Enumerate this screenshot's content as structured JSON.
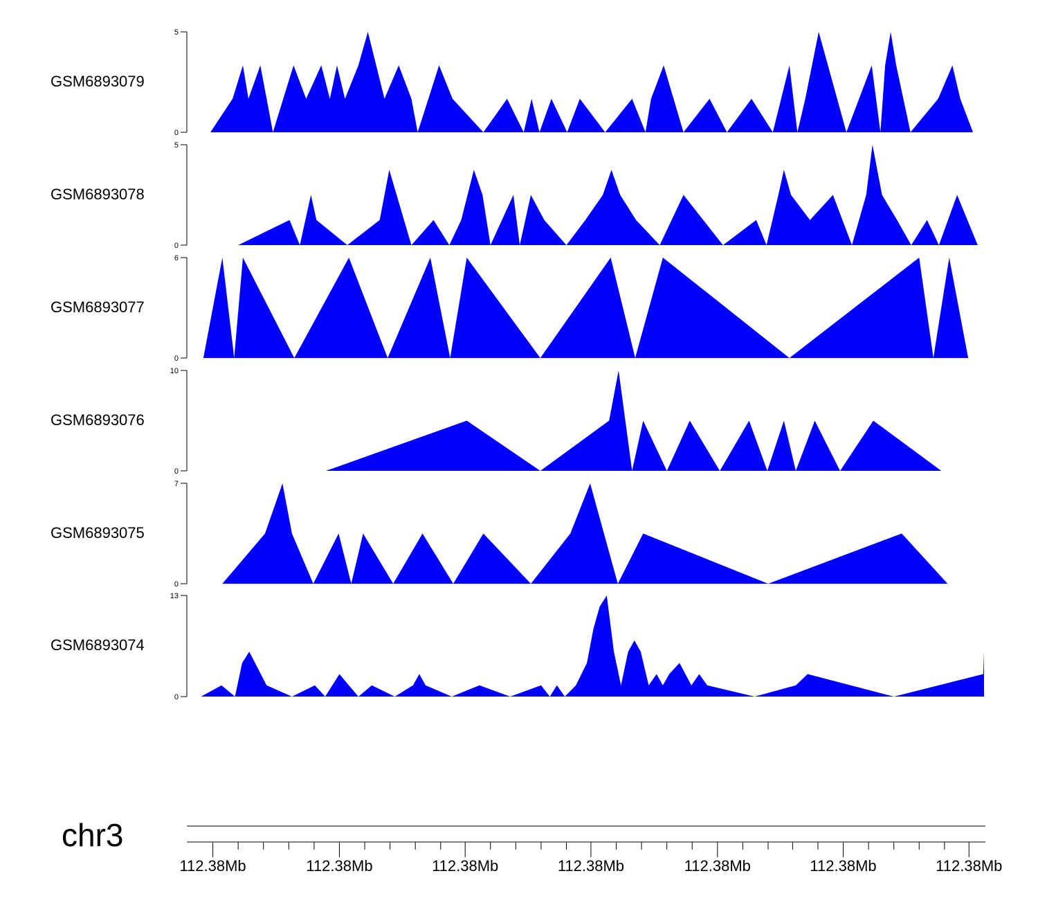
{
  "chart_data": {
    "type": "area",
    "title": "",
    "fill_color": "#0000ff",
    "x_range": [
      0,
      100
    ],
    "tracks": [
      {
        "name": "GSM6893079",
        "ylim": [
          0,
          5
        ],
        "points": [
          [
            2.2,
            0
          ],
          [
            5.0,
            1.67
          ],
          [
            6.3,
            3.33
          ],
          [
            7.0,
            1.67
          ],
          [
            8.5,
            3.33
          ],
          [
            10.1,
            0
          ],
          [
            12.7,
            3.33
          ],
          [
            14.3,
            1.67
          ],
          [
            16.2,
            3.33
          ],
          [
            17.3,
            1.67
          ],
          [
            18.2,
            3.33
          ],
          [
            19.2,
            1.67
          ],
          [
            20.9,
            3.33
          ],
          [
            22.1,
            5
          ],
          [
            24.2,
            1.67
          ],
          [
            26.0,
            3.33
          ],
          [
            27.6,
            1.67
          ],
          [
            28.4,
            0
          ],
          [
            31.1,
            3.33
          ],
          [
            32.8,
            1.67
          ],
          [
            36.7,
            0
          ],
          [
            39.7,
            1.67
          ],
          [
            41.8,
            0
          ],
          [
            42.8,
            1.67
          ],
          [
            43.8,
            0
          ],
          [
            45.3,
            1.67
          ],
          [
            47.3,
            0
          ],
          [
            48.9,
            1.67
          ],
          [
            52.1,
            0
          ],
          [
            55.5,
            1.67
          ],
          [
            57.2,
            0
          ],
          [
            57.9,
            1.67
          ],
          [
            59.5,
            3.33
          ],
          [
            62.0,
            0
          ],
          [
            65.3,
            1.67
          ],
          [
            67.5,
            0
          ],
          [
            70.6,
            1.67
          ],
          [
            73.3,
            0
          ],
          [
            75.4,
            3.33
          ],
          [
            76.4,
            0
          ],
          [
            77.4,
            1.67
          ],
          [
            79.1,
            5
          ],
          [
            82.6,
            0
          ],
          [
            85.8,
            3.33
          ],
          [
            86.9,
            0
          ],
          [
            87.5,
            3.33
          ],
          [
            88.2,
            5
          ],
          [
            88.9,
            3.33
          ],
          [
            90.7,
            0
          ],
          [
            94.2,
            1.67
          ],
          [
            96.0,
            3.33
          ],
          [
            97.0,
            1.67
          ],
          [
            98.6,
            0
          ]
        ]
      },
      {
        "name": "GSM6893078",
        "ylim": [
          0,
          5
        ],
        "points": [
          [
            5.7,
            0
          ],
          [
            12.2,
            1.25
          ],
          [
            13.5,
            0
          ],
          [
            14.9,
            2.5
          ],
          [
            15.6,
            1.25
          ],
          [
            19.5,
            0
          ],
          [
            23.6,
            1.25
          ],
          [
            24.8,
            3.75
          ],
          [
            27.6,
            0
          ],
          [
            30.4,
            1.25
          ],
          [
            32.4,
            0
          ],
          [
            33.9,
            1.25
          ],
          [
            35.5,
            3.75
          ],
          [
            36.6,
            2.5
          ],
          [
            37.6,
            0
          ],
          [
            40.5,
            2.5
          ],
          [
            41.3,
            0
          ],
          [
            42.7,
            2.5
          ],
          [
            44.4,
            1.25
          ],
          [
            47.2,
            0
          ],
          [
            49.6,
            1.25
          ],
          [
            51.8,
            2.5
          ],
          [
            52.9,
            3.75
          ],
          [
            54.0,
            2.5
          ],
          [
            56.0,
            1.25
          ],
          [
            59.0,
            0
          ],
          [
            62.0,
            2.5
          ],
          [
            67.0,
            0
          ],
          [
            71.2,
            1.25
          ],
          [
            72.5,
            0
          ],
          [
            74.0,
            2.5
          ],
          [
            74.7,
            3.75
          ],
          [
            75.6,
            2.5
          ],
          [
            78.0,
            1.25
          ],
          [
            80.9,
            2.5
          ],
          [
            83.3,
            0
          ],
          [
            85.1,
            2.5
          ],
          [
            85.9,
            5
          ],
          [
            87.1,
            2.5
          ],
          [
            89.0,
            1.25
          ],
          [
            90.8,
            0
          ],
          [
            92.8,
            1.25
          ],
          [
            94.3,
            0
          ],
          [
            96.6,
            2.5
          ],
          [
            97.9,
            1.25
          ],
          [
            99.2,
            0
          ]
        ]
      },
      {
        "name": "GSM6893077",
        "ylim": [
          0,
          6
        ],
        "points": [
          [
            1.3,
            0
          ],
          [
            3.7,
            6
          ],
          [
            5.2,
            0
          ],
          [
            6.3,
            6
          ],
          [
            12.8,
            0
          ],
          [
            19.7,
            6
          ],
          [
            24.6,
            0
          ],
          [
            30.0,
            6
          ],
          [
            32.5,
            0
          ],
          [
            34.6,
            6
          ],
          [
            43.9,
            0
          ],
          [
            52.8,
            6
          ],
          [
            55.9,
            0
          ],
          [
            59.4,
            6
          ],
          [
            75.4,
            0
          ],
          [
            91.8,
            6
          ],
          [
            93.6,
            0
          ],
          [
            95.6,
            6
          ],
          [
            98.0,
            0
          ]
        ]
      },
      {
        "name": "GSM6893076",
        "ylim": [
          0,
          10
        ],
        "points": [
          [
            16.8,
            0
          ],
          [
            34.6,
            5
          ],
          [
            43.9,
            0
          ],
          [
            52.6,
            5
          ],
          [
            53.8,
            10
          ],
          [
            55.5,
            0
          ],
          [
            56.9,
            5
          ],
          [
            59.9,
            0
          ],
          [
            62.8,
            5
          ],
          [
            66.6,
            0
          ],
          [
            70.3,
            5
          ],
          [
            72.6,
            0
          ],
          [
            74.7,
            5
          ],
          [
            76.2,
            0
          ],
          [
            78.6,
            5
          ],
          [
            81.8,
            0
          ],
          [
            86.0,
            5
          ],
          [
            94.6,
            0
          ]
        ]
      },
      {
        "name": "GSM6893075",
        "ylim": [
          0,
          7
        ],
        "points": [
          [
            3.7,
            0
          ],
          [
            9.1,
            3.5
          ],
          [
            11.3,
            7
          ],
          [
            12.5,
            3.5
          ],
          [
            15.2,
            0
          ],
          [
            18.4,
            3.5
          ],
          [
            20.0,
            0
          ],
          [
            21.5,
            3.5
          ],
          [
            25.3,
            0
          ],
          [
            29.0,
            3.5
          ],
          [
            32.9,
            0
          ],
          [
            36.7,
            3.5
          ],
          [
            42.7,
            0
          ],
          [
            47.7,
            3.5
          ],
          [
            50.2,
            7
          ],
          [
            53.7,
            0
          ],
          [
            56.9,
            3.5
          ],
          [
            72.7,
            0
          ],
          [
            89.6,
            3.5
          ],
          [
            95.4,
            0
          ]
        ]
      },
      {
        "name": "GSM6893074",
        "ylim": [
          0,
          13
        ],
        "points": [
          [
            1.0,
            0
          ],
          [
            3.6,
            1.44
          ],
          [
            5.3,
            0
          ],
          [
            6.2,
            4.33
          ],
          [
            7.1,
            5.78
          ],
          [
            9.3,
            1.44
          ],
          [
            12.5,
            0
          ],
          [
            15.4,
            1.44
          ],
          [
            16.7,
            0
          ],
          [
            18.5,
            2.89
          ],
          [
            20.9,
            0
          ],
          [
            22.6,
            1.44
          ],
          [
            25.5,
            0
          ],
          [
            27.8,
            1.44
          ],
          [
            28.6,
            2.89
          ],
          [
            29.4,
            1.44
          ],
          [
            32.7,
            0
          ],
          [
            36.2,
            1.44
          ],
          [
            40.1,
            0
          ],
          [
            44.0,
            1.44
          ],
          [
            45.1,
            0
          ],
          [
            46.0,
            1.44
          ],
          [
            47.0,
            0
          ],
          [
            48.4,
            1.44
          ],
          [
            49.8,
            4.33
          ],
          [
            50.6,
            8.67
          ],
          [
            51.4,
            11.56
          ],
          [
            52.3,
            13
          ],
          [
            53.2,
            5.78
          ],
          [
            54.1,
            1.44
          ],
          [
            55.0,
            5.78
          ],
          [
            55.8,
            7.22
          ],
          [
            56.6,
            5.78
          ],
          [
            57.6,
            1.44
          ],
          [
            58.6,
            2.89
          ],
          [
            59.4,
            1.44
          ],
          [
            60.2,
            2.89
          ],
          [
            61.5,
            4.33
          ],
          [
            63.0,
            1.44
          ],
          [
            64.0,
            2.89
          ],
          [
            65.0,
            1.44
          ],
          [
            71.0,
            0
          ],
          [
            76.2,
            1.44
          ],
          [
            77.7,
            2.89
          ],
          [
            88.6,
            0
          ],
          [
            99.9,
            2.89
          ],
          [
            100,
            5.78
          ]
        ]
      }
    ],
    "chromosome": "chr3",
    "x_tick_labels": [
      "112.38Mb",
      "112.38Mb",
      "112.38Mb",
      "112.38Mb",
      "112.38Mb",
      "112.38Mb",
      "112.38Mb"
    ],
    "major_tick_positions": [
      2.5,
      18.5,
      34.4,
      50.3,
      66.3,
      82.2,
      98.1
    ],
    "minor_tick_positions": [
      5.7,
      8.9,
      12.1,
      15.3,
      21.7,
      24.9,
      28.1,
      31.3,
      37.6,
      40.8,
      44.0,
      47.2,
      53.5,
      56.7,
      59.9,
      63.1,
      69.5,
      72.7,
      75.8,
      79.0,
      85.4,
      88.6,
      91.8,
      95.0
    ]
  }
}
